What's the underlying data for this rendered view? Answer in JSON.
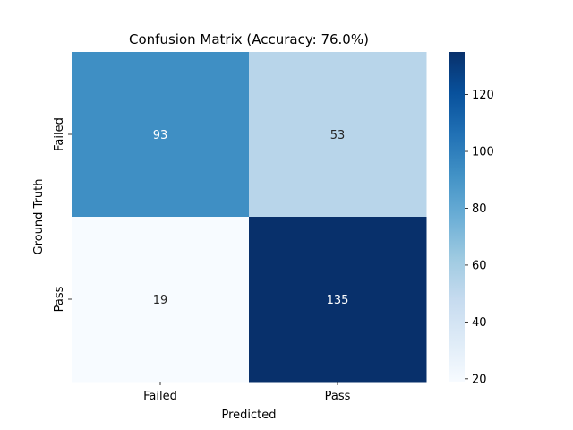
{
  "chart_data": {
    "type": "heatmap",
    "title": "Confusion Matrix (Accuracy: 76.0%)",
    "xlabel": "Predicted",
    "ylabel": "Ground Truth",
    "x_categories": [
      "Failed",
      "Pass"
    ],
    "y_categories": [
      "Failed",
      "Pass"
    ],
    "values": [
      [
        93,
        53
      ],
      [
        19,
        135
      ]
    ],
    "colorbar": {
      "range": [
        19,
        135
      ],
      "ticks": [
        20,
        40,
        60,
        80,
        100,
        120
      ],
      "colormap": "Blues"
    },
    "colors": {
      "low": "#f7fbff",
      "high": "#08306b",
      "text_dark_bg": "#ffffff",
      "text_light_bg": "#262626"
    }
  }
}
